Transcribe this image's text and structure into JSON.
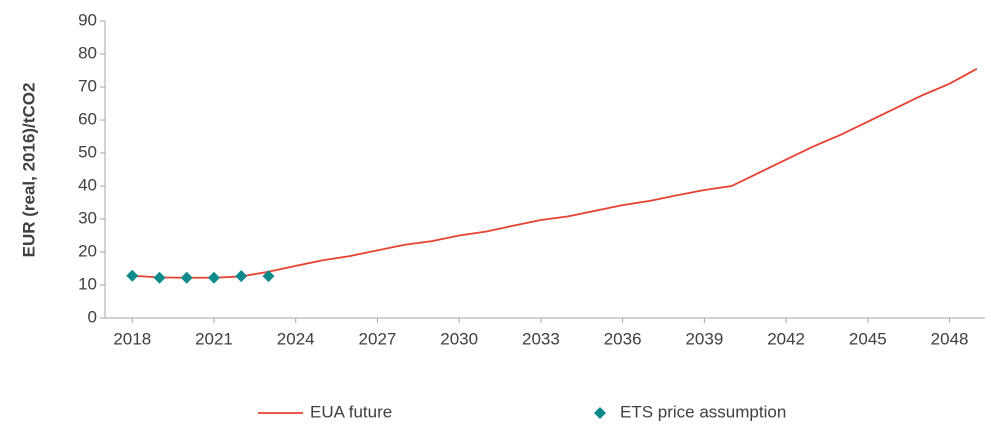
{
  "chart_data": {
    "type": "line",
    "y_label": "EUR  (real, 2016)/tCO2",
    "series": [
      {
        "name": "EUA future",
        "color": "#e8412f",
        "kind": "line",
        "x": [
          2018,
          2019,
          2020,
          2021,
          2022,
          2023,
          2024,
          2025,
          2026,
          2027,
          2028,
          2029,
          2030,
          2031,
          2032,
          2033,
          2034,
          2035,
          2036,
          2037,
          2038,
          2039,
          2040,
          2041,
          2042,
          2043,
          2044,
          2045,
          2046,
          2047,
          2048,
          2049
        ],
        "values": [
          12.8,
          12.3,
          12.2,
          12.2,
          12.6,
          14,
          15.8,
          17.5,
          18.8,
          20.5,
          22.2,
          23.3,
          25,
          26.2,
          28,
          29.7,
          30.8,
          32.5,
          34.2,
          35.5,
          37.2,
          38.8,
          40,
          44,
          48,
          52,
          55.5,
          59.5,
          63.5,
          67.5,
          71,
          75.5
        ]
      },
      {
        "name": "ETS price assumption",
        "color": "#0f8a8a",
        "kind": "scatter",
        "x": [
          2018,
          2019,
          2020,
          2021,
          2022,
          2023
        ],
        "values": [
          12.8,
          12.2,
          12.2,
          12.2,
          12.7,
          12.7
        ]
      }
    ],
    "xlim": [
      2017,
      2049.3
    ],
    "xticks": [
      2018,
      2021,
      2024,
      2027,
      2030,
      2033,
      2036,
      2039,
      2042,
      2045,
      2048
    ],
    "ylim": [
      0,
      90
    ],
    "yticks": [
      0,
      10,
      20,
      30,
      40,
      50,
      60,
      70,
      80,
      90
    ],
    "grid": false,
    "legend": "bottom"
  }
}
